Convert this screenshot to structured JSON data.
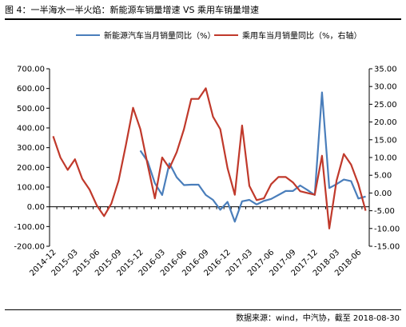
{
  "header": {
    "title": "图 4：一半海水一半火焰：新能源车销量增速 VS 乘用车销量增速"
  },
  "footer": {
    "source": "数据来源：wind，中汽协，截至 2018-08-30"
  },
  "chart_data": {
    "type": "line",
    "title": "图 4：一半海水一半火焰：新能源车销量增速 VS 乘用车销量增速",
    "legend_position": "top",
    "grid": false,
    "x": [
      "2014-12",
      "2015-01",
      "2015-02",
      "2015-03",
      "2015-04",
      "2015-05",
      "2015-06",
      "2015-07",
      "2015-08",
      "2015-09",
      "2015-10",
      "2015-11",
      "2015-12",
      "2016-01",
      "2016-02",
      "2016-03",
      "2016-04",
      "2016-05",
      "2016-06",
      "2016-07",
      "2016-08",
      "2016-09",
      "2016-10",
      "2016-11",
      "2016-12",
      "2017-01",
      "2017-02",
      "2017-03",
      "2017-04",
      "2017-05",
      "2017-06",
      "2017-07",
      "2017-08",
      "2017-09",
      "2017-10",
      "2017-11",
      "2017-12",
      "2018-01",
      "2018-02",
      "2018-03",
      "2018-04",
      "2018-05",
      "2018-06",
      "2018-07"
    ],
    "xticks": [
      "2014-12",
      "2015-03",
      "2015-06",
      "2015-09",
      "2015-12",
      "2016-03",
      "2016-06",
      "2016-09",
      "2016-12",
      "2017-03",
      "2017-06",
      "2017-09",
      "2017-12",
      "2018-03",
      "2018-06"
    ],
    "y_left": {
      "ylim": [
        -200,
        700
      ],
      "ticks": [
        "-200.00",
        "-100.00",
        "0.00",
        "100.00",
        "200.00",
        "300.00",
        "400.00",
        "500.00",
        "600.00",
        "700.00"
      ]
    },
    "y_right": {
      "ylim": [
        -15,
        35
      ],
      "ticks": [
        "-15.00",
        "-10.00",
        "-5.00",
        "0.00",
        "5.00",
        "10.00",
        "15.00",
        "20.00",
        "25.00",
        "30.00",
        "35.00"
      ]
    },
    "series": [
      {
        "name": "新能源汽车当月销量同比（%）",
        "axis": "left",
        "color": "#4a7ebb",
        "values": [
          null,
          null,
          null,
          null,
          null,
          null,
          null,
          null,
          null,
          null,
          null,
          null,
          285,
          230,
          120,
          60,
          220,
          150,
          110,
          112,
          112,
          60,
          35,
          -15,
          25,
          -75,
          28,
          35,
          12,
          30,
          40,
          60,
          80,
          80,
          108,
          85,
          60,
          580,
          95,
          115,
          138,
          130,
          42,
          52
        ]
      },
      {
        "name": "乘用车当月销量同比（%，右轴）",
        "axis": "right",
        "color": "#c0392b",
        "values": [
          16,
          10,
          6.5,
          9.5,
          4,
          1,
          -3.5,
          -6.5,
          -3,
          3.5,
          13.5,
          24,
          18,
          8,
          -1.5,
          10,
          7,
          11.5,
          18,
          26.5,
          26.5,
          29.5,
          21.5,
          18,
          7,
          -0.5,
          19,
          2,
          -2,
          -1.5,
          2.5,
          4.5,
          4.5,
          3,
          0.5,
          0,
          -0.5,
          10.5,
          -10,
          3.5,
          11,
          8,
          2.5,
          -5
        ]
      }
    ]
  }
}
